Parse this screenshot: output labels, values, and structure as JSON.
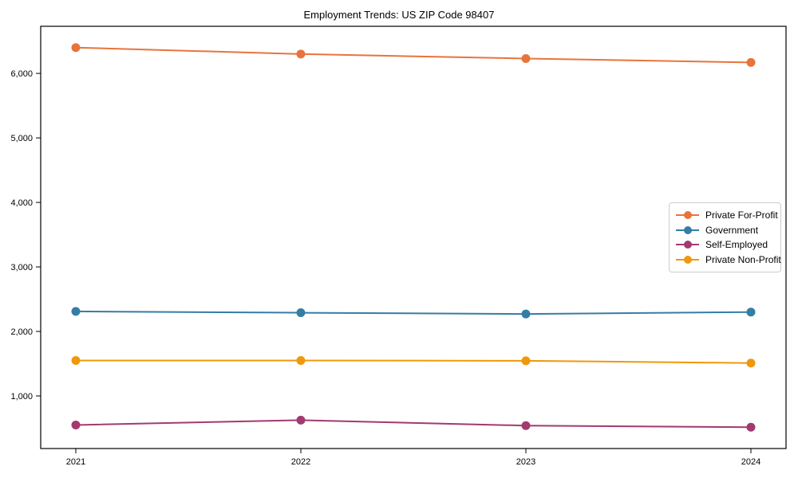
{
  "chart_data": {
    "type": "line",
    "title": "Employment Trends: US ZIP Code 98407",
    "x": [
      2021,
      2022,
      2023,
      2024
    ],
    "series": [
      {
        "name": "Private For-Profit",
        "color": "#E8743B",
        "values": [
          6400,
          6300,
          6230,
          6170
        ]
      },
      {
        "name": "Government",
        "color": "#357DA5",
        "values": [
          2310,
          2290,
          2270,
          2300
        ]
      },
      {
        "name": "Self-Employed",
        "color": "#A23A6F",
        "values": [
          550,
          625,
          540,
          515
        ]
      },
      {
        "name": "Private Non-Profit",
        "color": "#F0980B",
        "values": [
          1550,
          1550,
          1545,
          1510
        ]
      }
    ],
    "xlabel": "",
    "ylabel": "",
    "ylim": [
      185,
      6730
    ],
    "yticks": [
      1000,
      2000,
      3000,
      4000,
      5000,
      6000
    ],
    "xticks": [
      "2021",
      "2022",
      "2023",
      "2024"
    ],
    "grid": false,
    "legend_position": "center-right",
    "marker": "circle",
    "frame_color": "#000000",
    "background_color": "#ffffff"
  }
}
